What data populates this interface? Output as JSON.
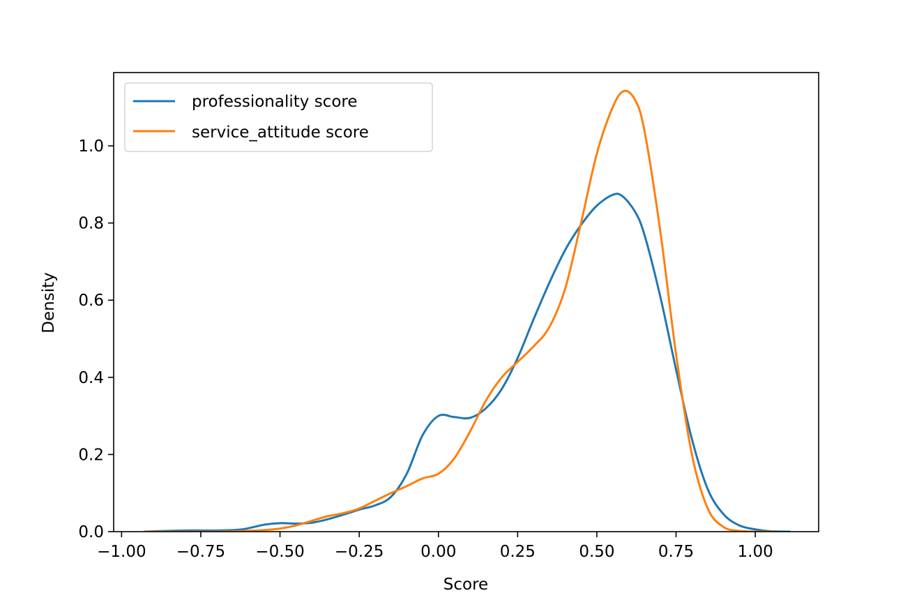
{
  "chart_data": {
    "type": "line",
    "title": "",
    "xlabel": "Score",
    "ylabel": "Density",
    "xlim": [
      -1.025,
      1.2
    ],
    "ylim": [
      0,
      1.19
    ],
    "xticks": [
      -1.0,
      -0.75,
      -0.5,
      -0.25,
      0.0,
      0.25,
      0.5,
      0.75,
      1.0
    ],
    "xtick_labels": [
      "−1.00",
      "−0.75",
      "−0.50",
      "−0.25",
      "0.00",
      "0.25",
      "0.50",
      "0.75",
      "1.00"
    ],
    "yticks": [
      0.0,
      0.2,
      0.4,
      0.6,
      0.8,
      1.0
    ],
    "ytick_labels": [
      "0.0",
      "0.2",
      "0.4",
      "0.6",
      "0.8",
      "1.0"
    ],
    "grid": false,
    "legend_position": "top-left",
    "series": [
      {
        "name": "professionality score",
        "color": "#1f77b4",
        "x": [
          -0.93,
          -0.8,
          -0.7,
          -0.62,
          -0.55,
          -0.5,
          -0.45,
          -0.4,
          -0.35,
          -0.3,
          -0.25,
          -0.2,
          -0.15,
          -0.1,
          -0.05,
          0.0,
          0.05,
          0.1,
          0.15,
          0.2,
          0.25,
          0.3,
          0.35,
          0.4,
          0.45,
          0.5,
          0.55,
          0.58,
          0.62,
          0.65,
          0.7,
          0.75,
          0.8,
          0.85,
          0.9,
          0.95,
          1.0,
          1.05,
          1.11
        ],
        "y": [
          0.0,
          0.003,
          0.003,
          0.006,
          0.018,
          0.022,
          0.021,
          0.023,
          0.032,
          0.044,
          0.057,
          0.068,
          0.09,
          0.15,
          0.25,
          0.3,
          0.297,
          0.295,
          0.32,
          0.37,
          0.45,
          0.55,
          0.645,
          0.73,
          0.795,
          0.845,
          0.873,
          0.87,
          0.83,
          0.77,
          0.61,
          0.42,
          0.24,
          0.11,
          0.045,
          0.016,
          0.006,
          0.001,
          0.0
        ]
      },
      {
        "name": "service_attitude score",
        "color": "#ff7f0e",
        "x": [
          -0.93,
          -0.7,
          -0.6,
          -0.55,
          -0.5,
          -0.45,
          -0.4,
          -0.35,
          -0.3,
          -0.25,
          -0.2,
          -0.15,
          -0.1,
          -0.05,
          0.0,
          0.05,
          0.1,
          0.15,
          0.2,
          0.25,
          0.3,
          0.35,
          0.4,
          0.45,
          0.5,
          0.55,
          0.585,
          0.62,
          0.65,
          0.7,
          0.75,
          0.8,
          0.85,
          0.9,
          0.95,
          1.0,
          1.06
        ],
        "y": [
          0.0,
          0.0,
          0.002,
          0.004,
          0.008,
          0.016,
          0.028,
          0.04,
          0.048,
          0.06,
          0.08,
          0.1,
          0.118,
          0.138,
          0.15,
          0.19,
          0.26,
          0.34,
          0.4,
          0.44,
          0.48,
          0.53,
          0.63,
          0.8,
          0.98,
          1.1,
          1.142,
          1.12,
          1.04,
          0.78,
          0.46,
          0.2,
          0.06,
          0.012,
          0.002,
          0.0,
          0.0
        ]
      }
    ]
  }
}
